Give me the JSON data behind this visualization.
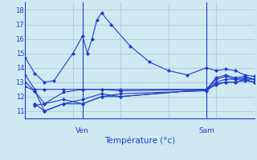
{
  "background_color": "#d0e8f0",
  "grid_color": "#aaccdd",
  "line_color": "#1a3dcc",
  "marker": "D",
  "marker_size": 2.5,
  "xlabel": "Température (°c)",
  "ven_label": "Ven",
  "sam_label": "Sam",
  "ylim": [
    10.5,
    18.5
  ],
  "xlim": [
    0,
    24
  ],
  "yticks": [
    11,
    12,
    13,
    14,
    15,
    16,
    17,
    18
  ],
  "ven_x": 6,
  "sam_x": 19,
  "series": [
    [
      0,
      14.7,
      1,
      13.6,
      2,
      13.0,
      3,
      13.1,
      5,
      15.0,
      6,
      16.2,
      6.5,
      15.0,
      7,
      16.0,
      7.5,
      17.3,
      8,
      17.8,
      9,
      17.0,
      11,
      15.5,
      13,
      14.4,
      15,
      13.8,
      17,
      13.5,
      19,
      14.0,
      20,
      13.8,
      21,
      13.9,
      22,
      13.8,
      23,
      13.5,
      24,
      13.4
    ],
    [
      0,
      13.5,
      1,
      12.5,
      2,
      12.5,
      4,
      12.5,
      6,
      12.5,
      8,
      12.5,
      10,
      12.5,
      19,
      12.5,
      20,
      13.0,
      21,
      13.2,
      22,
      13.2,
      23,
      13.3,
      24,
      13.2
    ],
    [
      0,
      13.0,
      1,
      12.4,
      2,
      11.5,
      4,
      11.8,
      6,
      11.5,
      8,
      12.0,
      10,
      12.2,
      19,
      12.4,
      20,
      12.9,
      21,
      13.0,
      22,
      13.0,
      23,
      13.1,
      24,
      13.0
    ],
    [
      0,
      12.7,
      1,
      12.4,
      2,
      11.0,
      4,
      11.5,
      6,
      11.5,
      8,
      12.0,
      10,
      12.0,
      19,
      12.5,
      20,
      13.3,
      21,
      13.5,
      22,
      13.3,
      23,
      13.4,
      24,
      13.2
    ],
    [
      1,
      11.5,
      2,
      11.0,
      4,
      11.5,
      6,
      11.8,
      8,
      12.2,
      10,
      12.0,
      19,
      12.5,
      20,
      12.8,
      21,
      13.0,
      22,
      13.0,
      23,
      13.2,
      24,
      13.0
    ],
    [
      1,
      11.4,
      2,
      11.5,
      4,
      12.3,
      6,
      12.5,
      8,
      12.5,
      10,
      12.4,
      19,
      12.5,
      20,
      13.2,
      21,
      13.4,
      22,
      13.2,
      23,
      13.2,
      24,
      13.2
    ]
  ]
}
